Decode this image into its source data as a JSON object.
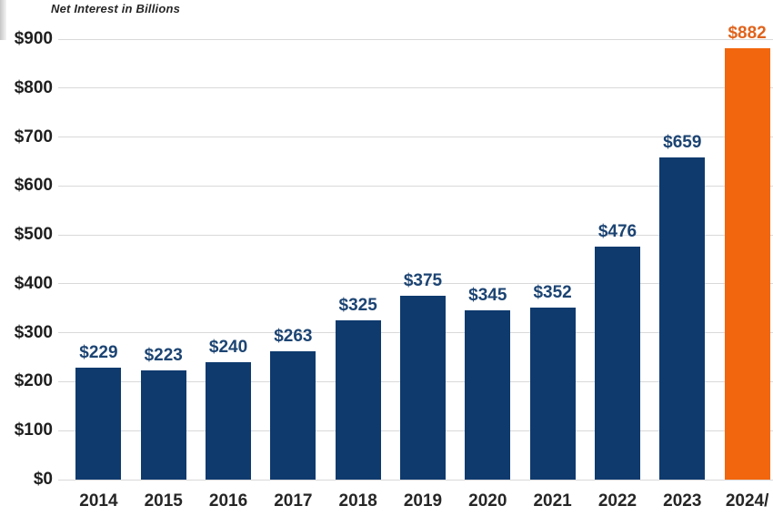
{
  "title": "Net Interest in Billions",
  "colors": {
    "bar_default": "#0e3a6e",
    "bar_highlight": "#f2660d",
    "value_label_default": "#1c4473",
    "value_label_highlight": "#e0631d",
    "axis_text": "#262626",
    "gridline": "#d9d9d9",
    "title_text": "#262626"
  },
  "chart_data": {
    "type": "bar",
    "title": "Net Interest in Billions",
    "categories": [
      "2014",
      "2015",
      "2016",
      "2017",
      "2018",
      "2019",
      "2020",
      "2021",
      "2022",
      "2023",
      "2024/"
    ],
    "values": [
      229,
      223,
      240,
      263,
      325,
      375,
      345,
      352,
      476,
      659,
      882
    ],
    "data_labels": [
      "$229",
      "$223",
      "$240",
      "$263",
      "$325",
      "$375",
      "$345",
      "$352",
      "$476",
      "$659",
      "$882"
    ],
    "highlight_index": 10,
    "y_tick_labels": [
      "$900",
      "$800",
      "$700",
      "$600",
      "$500",
      "$400",
      "$300",
      "$200",
      "$100",
      "$0"
    ],
    "y_tick_values": [
      900,
      800,
      700,
      600,
      500,
      400,
      300,
      200,
      100,
      0
    ],
    "ylim": [
      0,
      900
    ],
    "y_tick_step": 100,
    "xlabel": "",
    "ylabel": "",
    "grid": true,
    "legend": "none"
  }
}
